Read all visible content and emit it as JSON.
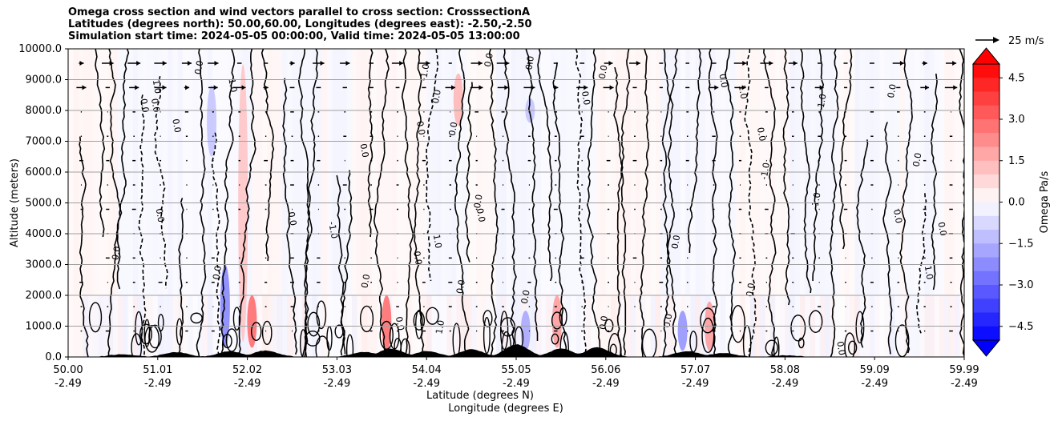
{
  "chart_data": {
    "type": "heatmap",
    "title_lines": [
      "Omega cross section and wind vectors parallel to cross section: CrosssectionA",
      "Latitudes (degrees north): 50.00,60.00, Longitudes (degrees east): -2.50,-2.50",
      "Simulation start time: 2024-05-05 00:00:00, Valid time: 2024-05-05 13:00:00"
    ],
    "xlabel_lines": [
      "Latitude (degrees N)",
      "Longitude (degrees E)"
    ],
    "ylabel": "Altitude (meters)",
    "x_ticks": [
      {
        "lat": "50.00",
        "lon": "-2.49"
      },
      {
        "lat": "51.01",
        "lon": "-2.49"
      },
      {
        "lat": "52.02",
        "lon": "-2.49"
      },
      {
        "lat": "53.03",
        "lon": "-2.49"
      },
      {
        "lat": "54.04",
        "lon": "-2.49"
      },
      {
        "lat": "55.05",
        "lon": "-2.49"
      },
      {
        "lat": "56.06",
        "lon": "-2.49"
      },
      {
        "lat": "57.07",
        "lon": "-2.49"
      },
      {
        "lat": "58.08",
        "lon": "-2.49"
      },
      {
        "lat": "59.09",
        "lon": "-2.49"
      },
      {
        "lat": "59.99",
        "lon": "-2.49"
      }
    ],
    "x_range": [
      50.0,
      59.99
    ],
    "y_ticks": [
      "0.0",
      "1000.0",
      "2000.0",
      "3000.0",
      "4000.0",
      "5000.0",
      "6000.0",
      "7000.0",
      "8000.0",
      "9000.0",
      "10000.0"
    ],
    "ylim": [
      0,
      10000
    ],
    "grid": "horizontal",
    "colorbar": {
      "label": "Omega Pa/s",
      "ticks": [
        "4.5",
        "3.0",
        "1.5",
        "0.0",
        "−1.5",
        "−3.0",
        "−4.5"
      ],
      "range": [
        -5,
        5
      ],
      "step": 0.5,
      "cmap": "bwr",
      "extend": "both"
    },
    "vector_key": {
      "label": "25 m/s"
    },
    "contour_label": "0.0",
    "contour_labels": [
      "1.0",
      "-1.0"
    ],
    "omega_bands": [
      {
        "lat": 51.95,
        "alt_lo": 500,
        "alt_hi": 9500,
        "omega": 1.2
      },
      {
        "lat": 52.05,
        "alt_lo": 300,
        "alt_hi": 2000,
        "omega": 3.0
      },
      {
        "lat": 51.75,
        "alt_lo": 300,
        "alt_hi": 3000,
        "omega": -2.5
      },
      {
        "lat": 51.6,
        "alt_lo": 6500,
        "alt_hi": 8800,
        "omega": -1.2
      },
      {
        "lat": 53.55,
        "alt_lo": 200,
        "alt_hi": 2000,
        "omega": 3.0
      },
      {
        "lat": 55.45,
        "alt_lo": 300,
        "alt_hi": 2000,
        "omega": 2.0
      },
      {
        "lat": 55.1,
        "alt_lo": 200,
        "alt_hi": 1500,
        "omega": -1.8
      },
      {
        "lat": 57.15,
        "alt_lo": 200,
        "alt_hi": 1800,
        "omega": 2.0
      },
      {
        "lat": 56.85,
        "alt_lo": 200,
        "alt_hi": 1500,
        "omega": -2.2
      },
      {
        "lat": 54.35,
        "alt_lo": 7500,
        "alt_hi": 9200,
        "omega": 1.5
      },
      {
        "lat": 55.15,
        "alt_lo": 7600,
        "alt_hi": 8400,
        "omega": -1.2
      }
    ],
    "terrain_peaks": [
      {
        "lat": 50.6,
        "alt": 80
      },
      {
        "lat": 51.2,
        "alt": 150
      },
      {
        "lat": 51.8,
        "alt": 180
      },
      {
        "lat": 52.2,
        "alt": 200
      },
      {
        "lat": 53.3,
        "alt": 150
      },
      {
        "lat": 53.6,
        "alt": 260
      },
      {
        "lat": 54.0,
        "alt": 180
      },
      {
        "lat": 54.5,
        "alt": 240
      },
      {
        "lat": 55.0,
        "alt": 400
      },
      {
        "lat": 55.5,
        "alt": 260
      },
      {
        "lat": 55.9,
        "alt": 300
      },
      {
        "lat": 56.9,
        "alt": 180
      },
      {
        "lat": 57.3,
        "alt": 120
      },
      {
        "lat": 58.0,
        "alt": 40
      }
    ]
  }
}
